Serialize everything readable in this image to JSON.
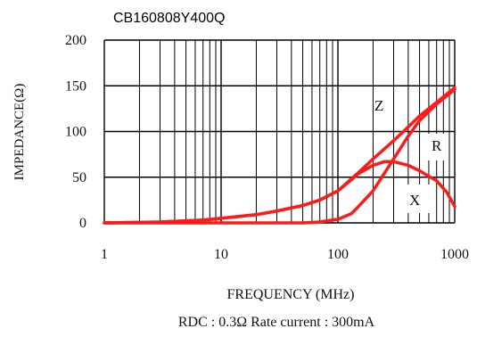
{
  "chart_data": {
    "type": "line",
    "title": "CB160808Y400Q",
    "xlabel": "FREQUENCY (MHz)",
    "ylabel": "IMPEDANCE(Ω)",
    "x_scale": "log",
    "xlim": [
      1,
      1000
    ],
    "ylim": [
      0,
      200
    ],
    "x_ticks": [
      1,
      10,
      100,
      1000
    ],
    "x_tick_labels": [
      "1",
      "10",
      "100",
      "1000"
    ],
    "y_ticks": [
      0,
      50,
      100,
      150,
      200
    ],
    "y_tick_labels": [
      "0",
      "50",
      "100",
      "150",
      "200"
    ],
    "grid": true,
    "color": "#ff1a1a",
    "footer": "RDC : 0.3Ω  Rate current : 300mA",
    "series": [
      {
        "name": "Z",
        "x": [
          1,
          3,
          7,
          10,
          20,
          30,
          50,
          70,
          100,
          130,
          150,
          200,
          300,
          400,
          500,
          700,
          1000
        ],
        "y": [
          0,
          1,
          3,
          5,
          9,
          13,
          19,
          25,
          35,
          48,
          55,
          70,
          90,
          105,
          117,
          132,
          148
        ]
      },
      {
        "name": "R",
        "x": [
          1,
          10,
          30,
          50,
          70,
          100,
          130,
          150,
          200,
          300,
          400,
          500,
          700,
          1000
        ],
        "y": [
          0,
          0,
          0,
          0,
          1,
          4,
          10,
          18,
          35,
          70,
          95,
          112,
          130,
          146
        ]
      },
      {
        "name": "X",
        "x": [
          1,
          3,
          7,
          10,
          20,
          30,
          50,
          70,
          100,
          130,
          150,
          200,
          250,
          300,
          400,
          500,
          700,
          850,
          1000
        ],
        "y": [
          0,
          1,
          3,
          5,
          9,
          13,
          19,
          25,
          35,
          47,
          54,
          63,
          67,
          67,
          63,
          57,
          46,
          34,
          18
        ]
      }
    ]
  }
}
